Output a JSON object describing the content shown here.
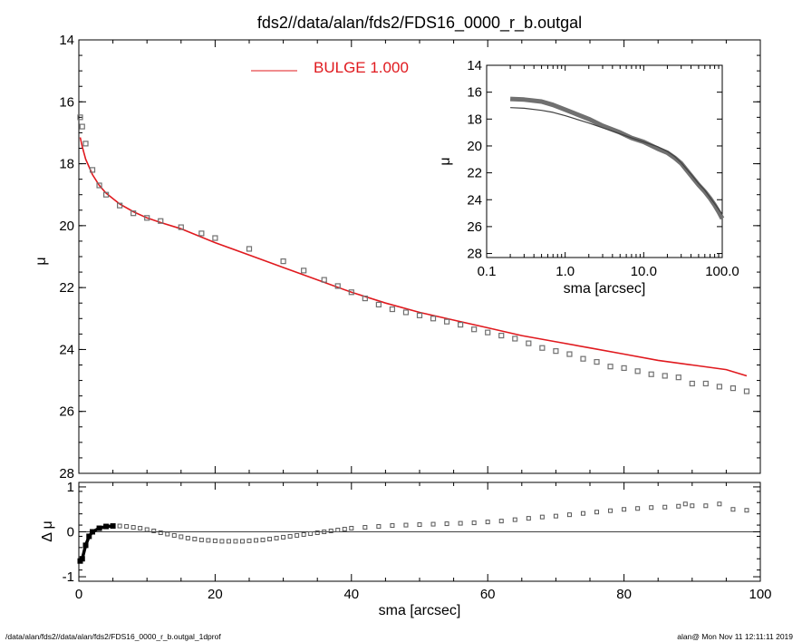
{
  "title": "fds2//data/alan/fds2/FDS16_0000_r_b.outgal",
  "footer_left": "/data/alan/fds2//data/alan/fds2/FDS16_0000_r_b.outgal_1dprof",
  "footer_right": "alan@  Mon Nov 11 12:11:11 2019",
  "colors": {
    "model": "#e0191e",
    "data": "#707070",
    "axis": "#000000"
  },
  "chart_data": [
    {
      "type": "scatter",
      "role": "main",
      "xlabel": "",
      "ylabel": "μ",
      "xlim": [
        0,
        100
      ],
      "ylim": [
        28,
        14
      ],
      "y_reversed": true,
      "yticks": [
        14,
        16,
        18,
        20,
        22,
        24,
        26,
        28
      ],
      "legend": {
        "position": "top-center",
        "label": "BULGE  1.000"
      },
      "series": [
        {
          "name": "BULGE  1.000",
          "kind": "line",
          "color": "#e0191e",
          "x": [
            0.2,
            0.5,
            1,
            2,
            3,
            4,
            6,
            8,
            10,
            12,
            15,
            20,
            25,
            30,
            35,
            40,
            45,
            50,
            55,
            60,
            65,
            70,
            75,
            80,
            85,
            90,
            95,
            98
          ],
          "y": [
            17.15,
            17.45,
            17.85,
            18.35,
            18.7,
            18.95,
            19.3,
            19.55,
            19.75,
            19.9,
            20.1,
            20.55,
            20.95,
            21.35,
            21.75,
            22.15,
            22.5,
            22.8,
            23.05,
            23.3,
            23.55,
            23.75,
            23.95,
            24.15,
            24.35,
            24.5,
            24.65,
            24.85
          ]
        },
        {
          "name": "",
          "kind": "markers",
          "color": "#707070",
          "x": [
            0.2,
            0.5,
            1,
            2,
            3,
            4,
            6,
            8,
            10,
            12,
            15,
            18,
            20,
            25,
            30,
            33,
            36,
            38,
            40,
            42,
            44,
            46,
            48,
            50,
            52,
            54,
            56,
            58,
            60,
            62,
            64,
            66,
            68,
            70,
            72,
            74,
            76,
            78,
            80,
            82,
            84,
            86,
            88,
            90,
            92,
            94,
            96,
            98
          ],
          "y": [
            16.5,
            16.8,
            17.35,
            18.2,
            18.7,
            19.0,
            19.35,
            19.6,
            19.75,
            19.85,
            20.05,
            20.25,
            20.4,
            20.75,
            21.15,
            21.45,
            21.75,
            21.95,
            22.15,
            22.35,
            22.55,
            22.7,
            22.8,
            22.9,
            23.0,
            23.1,
            23.2,
            23.35,
            23.45,
            23.55,
            23.65,
            23.8,
            23.95,
            24.05,
            24.15,
            24.3,
            24.4,
            24.55,
            24.6,
            24.7,
            24.8,
            24.85,
            24.9,
            25.1,
            25.1,
            25.2,
            25.25,
            25.35
          ]
        }
      ]
    },
    {
      "type": "scatter",
      "role": "residual",
      "xlabel": "sma [arcsec]",
      "ylabel": "Δ μ",
      "xlim": [
        0,
        100
      ],
      "ylim": [
        -1.1,
        1.1
      ],
      "xticks": [
        0,
        20,
        40,
        60,
        80,
        100
      ],
      "yticks": [
        -1,
        0,
        1
      ],
      "series": [
        {
          "name": "",
          "kind": "markers",
          "color": "#000000",
          "x": [
            0.2,
            0.5,
            1,
            1.5,
            2,
            3,
            4,
            5,
            6,
            7,
            8,
            9,
            10,
            11,
            12,
            13,
            14,
            15,
            16,
            17,
            18,
            19,
            20,
            21,
            22,
            23,
            24,
            25,
            26,
            27,
            28,
            29,
            30,
            31,
            32,
            33,
            34,
            35,
            36,
            37,
            38,
            39,
            40,
            42,
            44,
            46,
            48,
            50,
            52,
            54,
            56,
            58,
            60,
            62,
            64,
            66,
            68,
            70,
            72,
            74,
            76,
            78,
            80,
            82,
            84,
            86,
            88,
            89,
            90,
            92,
            94,
            96,
            98
          ],
          "y": [
            -0.65,
            -0.6,
            -0.3,
            -0.1,
            0.0,
            0.08,
            0.12,
            0.13,
            0.13,
            0.12,
            0.1,
            0.08,
            0.05,
            0.02,
            -0.02,
            -0.05,
            -0.08,
            -0.11,
            -0.14,
            -0.16,
            -0.18,
            -0.19,
            -0.2,
            -0.21,
            -0.21,
            -0.21,
            -0.21,
            -0.2,
            -0.19,
            -0.18,
            -0.16,
            -0.14,
            -0.12,
            -0.1,
            -0.08,
            -0.06,
            -0.04,
            -0.02,
            0.0,
            0.02,
            0.04,
            0.06,
            0.08,
            0.1,
            0.12,
            0.14,
            0.15,
            0.16,
            0.17,
            0.18,
            0.19,
            0.2,
            0.22,
            0.24,
            0.27,
            0.3,
            0.33,
            0.35,
            0.38,
            0.41,
            0.44,
            0.47,
            0.5,
            0.52,
            0.54,
            0.55,
            0.57,
            0.62,
            0.58,
            0.58,
            0.62,
            0.5,
            0.48
          ]
        }
      ]
    },
    {
      "type": "line",
      "role": "inset",
      "xlabel": "sma [arcsec]",
      "ylabel": "μ",
      "x_scale": "log",
      "xlim": [
        0.1,
        100
      ],
      "ylim": [
        28.3,
        14
      ],
      "y_reversed": true,
      "xtick_labels": [
        "0.1",
        "1.0",
        "10.0",
        "100.0"
      ],
      "yticks": [
        14,
        16,
        18,
        20,
        22,
        24,
        26,
        28
      ],
      "series": [
        {
          "name": "",
          "kind": "thick",
          "color": "#707070",
          "x": [
            0.2,
            0.3,
            0.5,
            0.7,
            1,
            2,
            3,
            5,
            7,
            10,
            15,
            20,
            25,
            30,
            40,
            50,
            60,
            70,
            80,
            90,
            100
          ],
          "y": [
            16.5,
            16.55,
            16.7,
            16.95,
            17.3,
            18.0,
            18.5,
            19.0,
            19.4,
            19.7,
            20.2,
            20.5,
            20.9,
            21.3,
            22.2,
            22.9,
            23.4,
            23.9,
            24.4,
            24.9,
            25.4
          ]
        },
        {
          "name": "",
          "kind": "thin",
          "color": "#404040",
          "x": [
            0.2,
            0.3,
            0.5,
            0.7,
            1,
            2,
            3,
            5,
            7,
            10,
            15,
            20,
            25,
            30,
            40,
            50,
            60,
            70,
            80,
            90,
            100
          ],
          "y": [
            17.15,
            17.2,
            17.35,
            17.5,
            17.75,
            18.3,
            18.65,
            19.1,
            19.4,
            19.7,
            20.05,
            20.4,
            20.8,
            21.25,
            22.1,
            22.8,
            23.3,
            23.85,
            24.3,
            24.7,
            25.1
          ]
        }
      ]
    }
  ]
}
